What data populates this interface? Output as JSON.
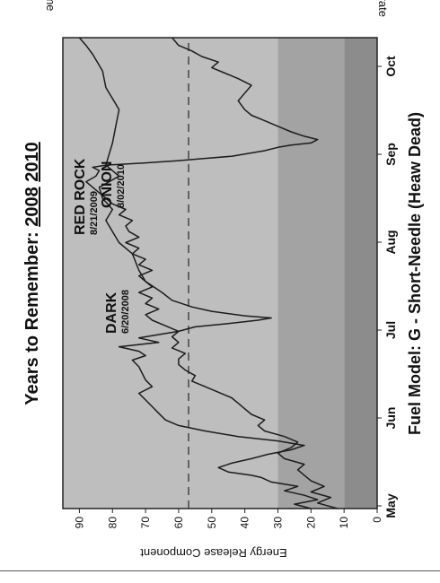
{
  "colors": {
    "band_dark": "#8c8c8c",
    "band_mid": "#a3a3a3",
    "band_light": "#bebebe",
    "line_stroke": "#1c1c1c",
    "threshold_line": "#333333",
    "text": "#111111"
  },
  "header": {
    "title_prefix": "Years to Remember:",
    "year_a": "2008",
    "year_b": "2010"
  },
  "fuel_model": "Fuel Model: G - Short-Needle (Heaw Dead)",
  "corner_labels": {
    "top": "Extreme",
    "bottom": "Moderate"
  },
  "chart_data": {
    "type": "line",
    "xlabel": "",
    "ylabel": "Energy Release Component",
    "ylim": [
      0,
      95
    ],
    "y_ticks": [
      "0",
      "10",
      "20",
      "30",
      "40",
      "50",
      "60",
      "70",
      "80",
      "90"
    ],
    "x_ticks": [
      "May",
      "Jun",
      "Jul",
      "Aug",
      "Sep",
      "Oct"
    ],
    "threshold": 57,
    "bands": [
      {
        "name": "dark",
        "from": 0,
        "to": 10
      },
      {
        "name": "mid",
        "from": 10,
        "to": 30
      },
      {
        "name": "light",
        "from": 30,
        "to": 95
      }
    ],
    "series": [
      {
        "values": [
          [
            0,
            20
          ],
          [
            4,
            25
          ],
          [
            8,
            18
          ],
          [
            12,
            22
          ],
          [
            16,
            28
          ],
          [
            20,
            24
          ],
          [
            24,
            32
          ],
          [
            28,
            35
          ],
          [
            30,
            38
          ],
          [
            33,
            45
          ],
          [
            37,
            48
          ],
          [
            41,
            44
          ],
          [
            45,
            38
          ],
          [
            49,
            33
          ],
          [
            53,
            26
          ],
          [
            57,
            22
          ],
          [
            61,
            30
          ],
          [
            65,
            42
          ],
          [
            70,
            52
          ],
          [
            75,
            60
          ],
          [
            80,
            64
          ],
          [
            86,
            66
          ],
          [
            92,
            68
          ],
          [
            98,
            70
          ],
          [
            104,
            72
          ],
          [
            110,
            68
          ],
          [
            116,
            70
          ],
          [
            122,
            71
          ],
          [
            128,
            72
          ],
          [
            134,
            74
          ],
          [
            138,
            70
          ],
          [
            142,
            72
          ],
          [
            146,
            78
          ],
          [
            150,
            66
          ],
          [
            154,
            72
          ],
          [
            156,
            68
          ],
          [
            160,
            60
          ],
          [
            164,
            55
          ],
          [
            167,
            45
          ],
          [
            170,
            36
          ],
          [
            172,
            32
          ],
          [
            174,
            40
          ],
          [
            178,
            50
          ],
          [
            182,
            56
          ],
          [
            188,
            62
          ],
          [
            195,
            65
          ],
          [
            205,
            70
          ],
          [
            215,
            72
          ],
          [
            230,
            74
          ],
          [
            240,
            78
          ],
          [
            250,
            80
          ],
          [
            260,
            82
          ],
          [
            270,
            80
          ],
          [
            280,
            83
          ],
          [
            290,
            84
          ],
          [
            300,
            78
          ],
          [
            310,
            82
          ],
          [
            320,
            81
          ],
          [
            330,
            80
          ],
          [
            345,
            79
          ],
          [
            360,
            78
          ],
          [
            370,
            80
          ],
          [
            380,
            82
          ],
          [
            395,
            83
          ],
          [
            410,
            86
          ],
          [
            418,
            88
          ],
          [
            425,
            90
          ]
        ]
      },
      {
        "values": [
          [
            0,
            12
          ],
          [
            5,
            18
          ],
          [
            10,
            14
          ],
          [
            15,
            20
          ],
          [
            20,
            16
          ],
          [
            25,
            20
          ],
          [
            30,
            22
          ],
          [
            35,
            24
          ],
          [
            40,
            22
          ],
          [
            45,
            28
          ],
          [
            50,
            30
          ],
          [
            55,
            26
          ],
          [
            60,
            24
          ],
          [
            65,
            28
          ],
          [
            70,
            34
          ],
          [
            75,
            36
          ],
          [
            80,
            34
          ],
          [
            85,
            38
          ],
          [
            90,
            40
          ],
          [
            95,
            42
          ],
          [
            100,
            44
          ],
          [
            105,
            48
          ],
          [
            110,
            52
          ],
          [
            115,
            56
          ],
          [
            120,
            55
          ],
          [
            125,
            58
          ],
          [
            130,
            60
          ],
          [
            135,
            60
          ],
          [
            140,
            58
          ],
          [
            145,
            62
          ],
          [
            150,
            60
          ],
          [
            155,
            62
          ],
          [
            160,
            60
          ],
          [
            165,
            64
          ],
          [
            170,
            68
          ],
          [
            175,
            70
          ],
          [
            180,
            66
          ],
          [
            185,
            70
          ],
          [
            190,
            68
          ],
          [
            195,
            72
          ],
          [
            200,
            68
          ],
          [
            205,
            70
          ],
          [
            210,
            72
          ],
          [
            215,
            68
          ],
          [
            220,
            72
          ],
          [
            225,
            70
          ],
          [
            230,
            74
          ],
          [
            235,
            72
          ],
          [
            240,
            76
          ],
          [
            245,
            72
          ],
          [
            250,
            75
          ],
          [
            255,
            76
          ],
          [
            260,
            74
          ],
          [
            265,
            78
          ],
          [
            270,
            76
          ],
          [
            275,
            80
          ],
          [
            280,
            82
          ],
          [
            285,
            84
          ],
          [
            290,
            86
          ],
          [
            295,
            88
          ],
          [
            300,
            85
          ],
          [
            305,
            84
          ],
          [
            308,
            86
          ],
          [
            310,
            82
          ],
          [
            312,
            70
          ],
          [
            314,
            60
          ],
          [
            316,
            52
          ],
          [
            318,
            44
          ],
          [
            321,
            38
          ],
          [
            323,
            34
          ],
          [
            326,
            30
          ],
          [
            328,
            26
          ],
          [
            330,
            20
          ],
          [
            333,
            18
          ],
          [
            336,
            22
          ],
          [
            340,
            26
          ],
          [
            345,
            30
          ],
          [
            350,
            34
          ],
          [
            355,
            38
          ],
          [
            360,
            40
          ],
          [
            368,
            42
          ],
          [
            375,
            40
          ],
          [
            382,
            38
          ],
          [
            388,
            42
          ],
          [
            393,
            46
          ],
          [
            398,
            50
          ],
          [
            403,
            48
          ],
          [
            408,
            53
          ],
          [
            413,
            56
          ],
          [
            418,
            60
          ],
          [
            425,
            62
          ]
        ]
      }
    ],
    "annotations": [
      {
        "name": "DARK",
        "date": "6/20/2008"
      },
      {
        "name": "RED ROCK",
        "date": "8/21/2009"
      },
      {
        "name": "ONION",
        "date": "8/02/2010"
      }
    ]
  }
}
